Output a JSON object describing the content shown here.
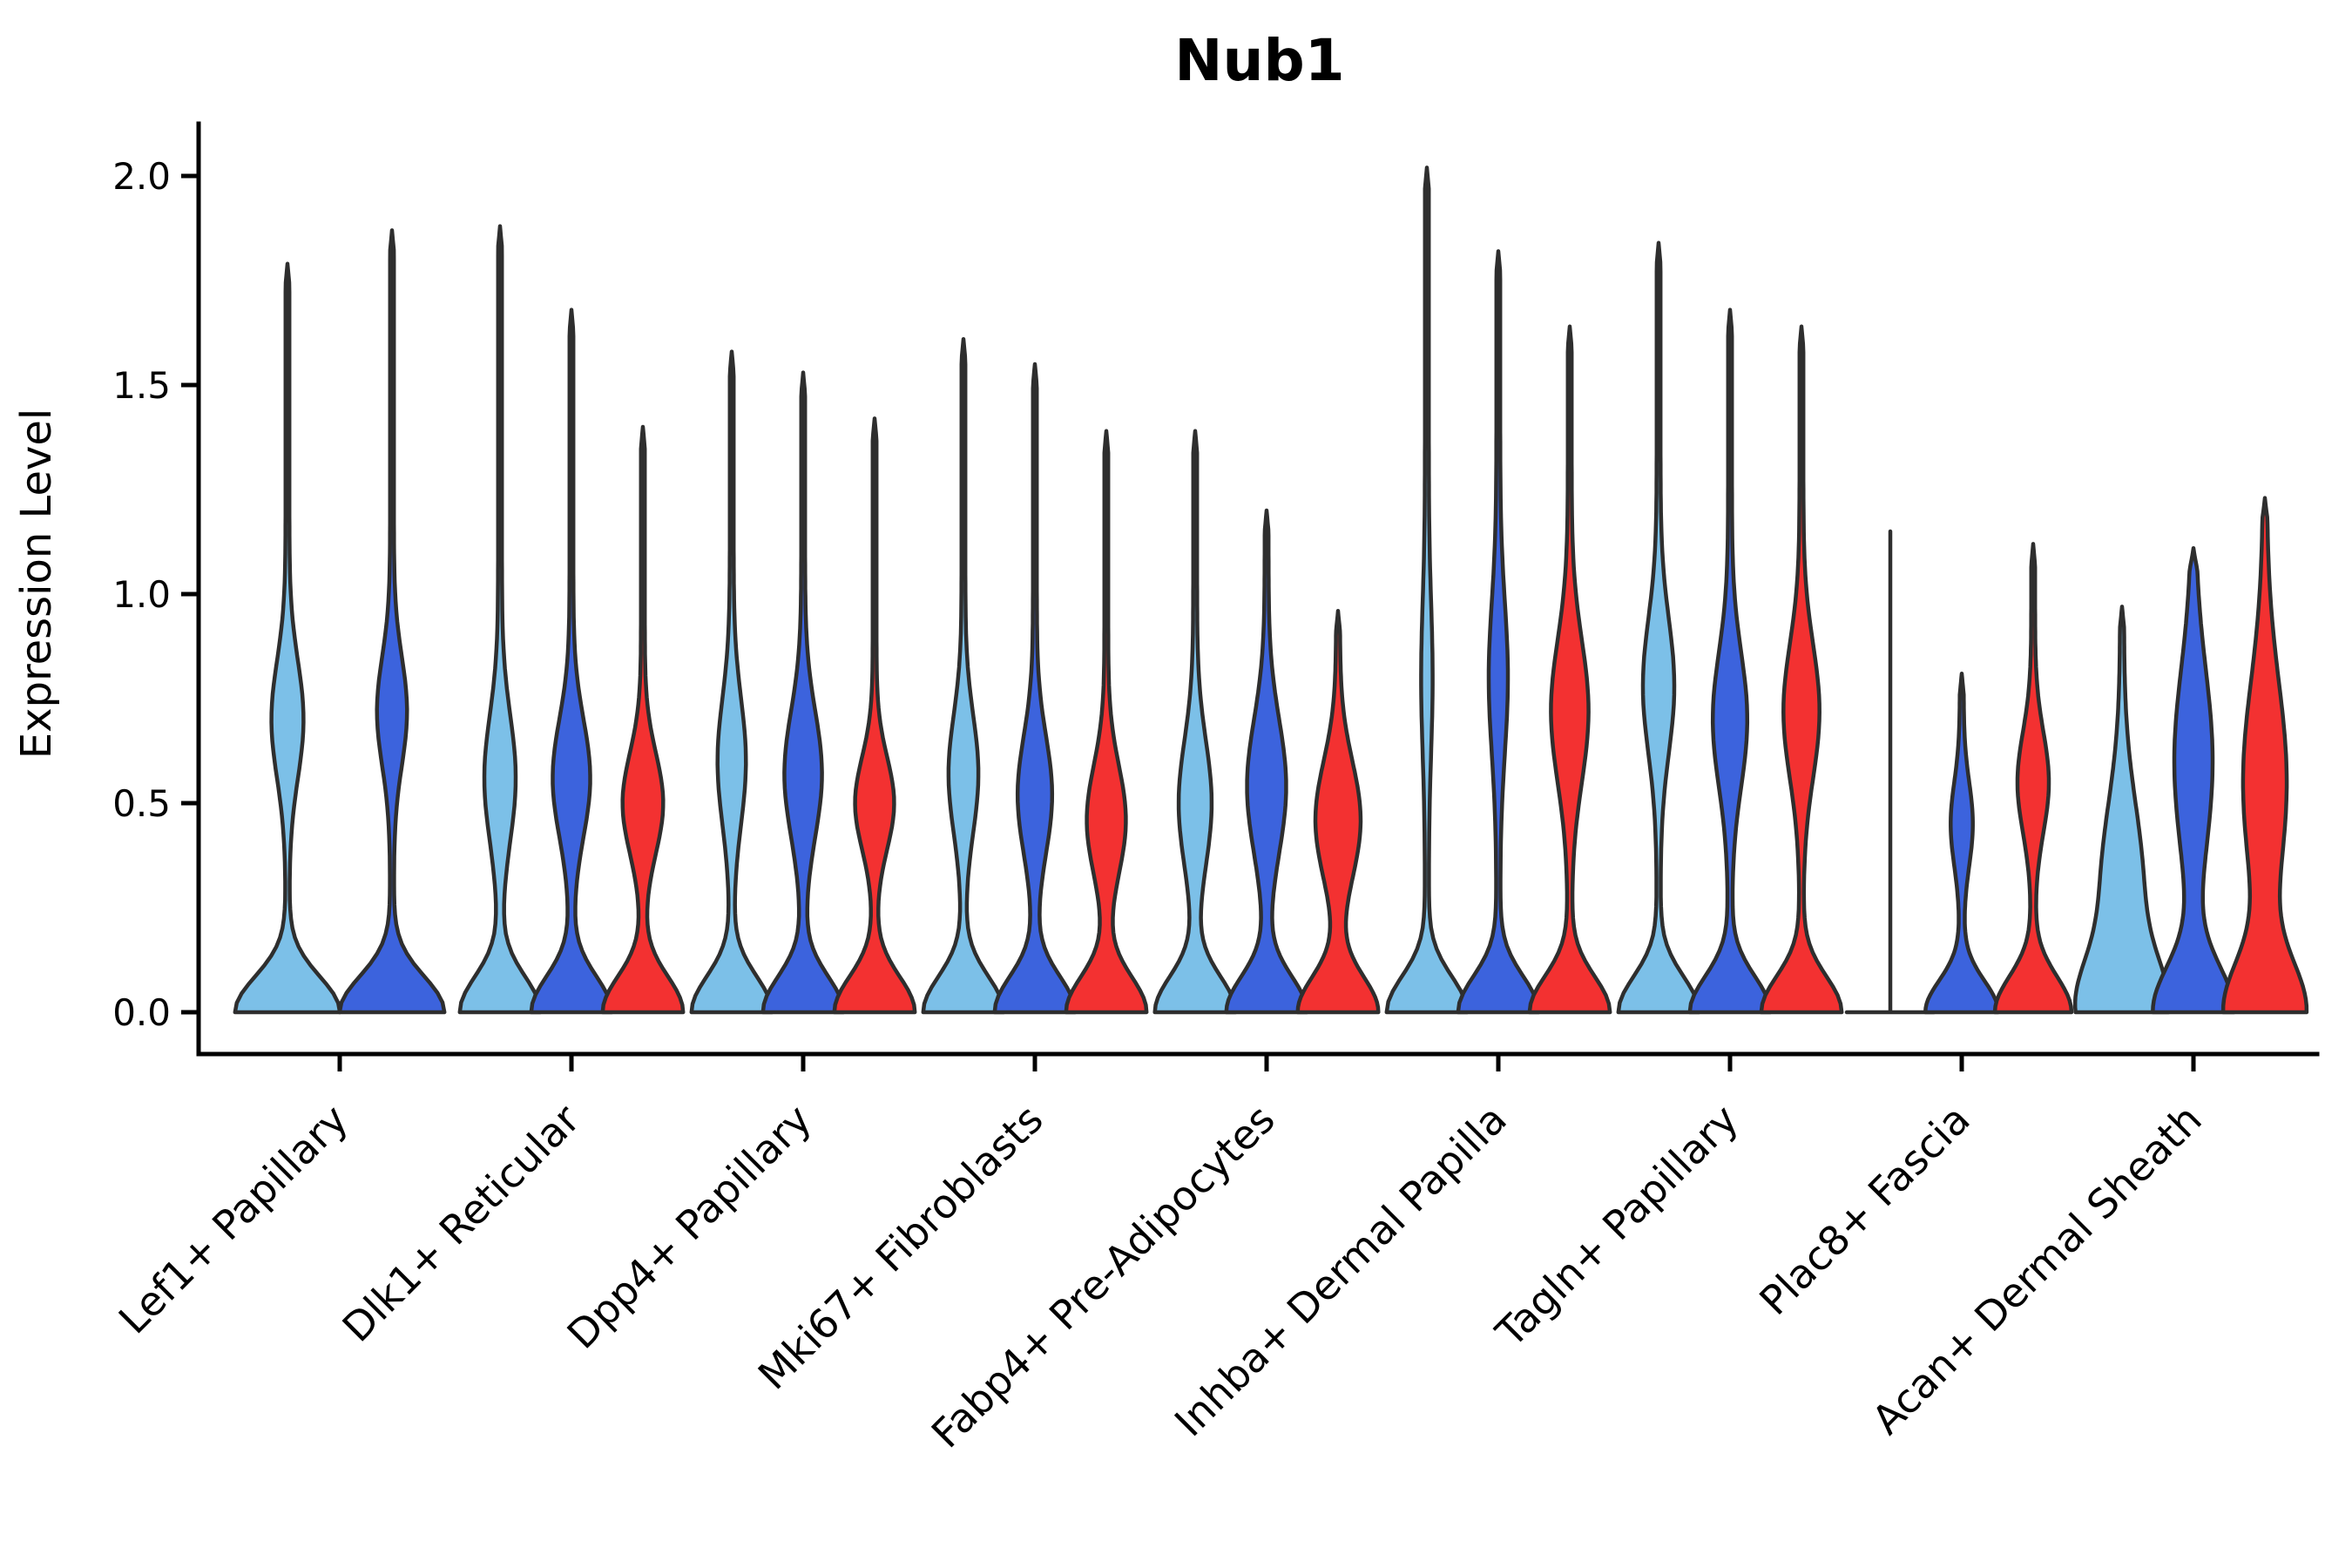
{
  "chart_data": {
    "type": "violin",
    "title": "Nub1",
    "xlabel": "",
    "ylabel": "Expression Level",
    "ylim": [
      0,
      2.1
    ],
    "grid": false,
    "legend": "none",
    "yticks": [
      {
        "value": 0.0,
        "label": "0.0"
      },
      {
        "value": 0.5,
        "label": "0.5"
      },
      {
        "value": 1.0,
        "label": "1.0"
      },
      {
        "value": 1.5,
        "label": "1.5"
      },
      {
        "value": 2.0,
        "label": "2.0"
      }
    ],
    "series_order": [
      "light_blue",
      "dark_blue",
      "red"
    ],
    "colors": {
      "light_blue": "#7CC0E8",
      "dark_blue": "#3C63DD",
      "red": "#F33131",
      "outline": "#2E2E2E",
      "axis": "#000000"
    },
    "categories": [
      "Lef1+ Papillary",
      "Dlk1+ Reticular",
      "Dpp4+ Papillary",
      "Mki67+ Fibroblasts",
      "Fabp4+ Pre-Adipocytes",
      "Inhba+ Dermal Papilla",
      "Tagln+ Papillary",
      "Plac8+ Fascia",
      "Acan+ Dermal Sheath"
    ],
    "groups": [
      {
        "label": "Lef1+ Papillary",
        "violins": [
          {
            "series": "light_blue",
            "shape": "violin",
            "max": 1.79,
            "bulge_center": 0.7,
            "bulge_sigma": 0.14,
            "bulge_width": 0.28,
            "base_width": 1.0,
            "base_sigma": 0.085
          },
          {
            "series": "dark_blue",
            "shape": "violin",
            "max": 1.87,
            "bulge_center": 0.72,
            "bulge_sigma": 0.13,
            "bulge_width": 0.26,
            "base_width": 1.0,
            "base_sigma": 0.085
          }
        ]
      },
      {
        "label": "Dlk1+ Reticular",
        "violins": [
          {
            "series": "light_blue",
            "shape": "violin",
            "max": 1.88,
            "bulge_center": 0.56,
            "bulge_sigma": 0.15,
            "bulge_width": 0.36,
            "base_width": 1.0,
            "base_sigma": 0.085
          },
          {
            "series": "dark_blue",
            "shape": "violin",
            "max": 1.68,
            "bulge_center": 0.56,
            "bulge_sigma": 0.14,
            "bulge_width": 0.44,
            "base_width": 1.0,
            "base_sigma": 0.085
          },
          {
            "series": "red",
            "shape": "violin",
            "max": 1.4,
            "bulge_center": 0.5,
            "bulge_sigma": 0.12,
            "bulge_width": 0.48,
            "base_width": 1.0,
            "base_sigma": 0.085
          }
        ]
      },
      {
        "label": "Dpp4+ Papillary",
        "violins": [
          {
            "series": "light_blue",
            "shape": "violin",
            "max": 1.58,
            "bulge_center": 0.6,
            "bulge_sigma": 0.15,
            "bulge_width": 0.32,
            "base_width": 1.0,
            "base_sigma": 0.085
          },
          {
            "series": "dark_blue",
            "shape": "violin",
            "max": 1.53,
            "bulge_center": 0.57,
            "bulge_sigma": 0.15,
            "bulge_width": 0.44,
            "base_width": 1.0,
            "base_sigma": 0.085
          },
          {
            "series": "red",
            "shape": "violin",
            "max": 1.42,
            "bulge_center": 0.5,
            "bulge_sigma": 0.11,
            "bulge_width": 0.46,
            "base_width": 1.0,
            "base_sigma": 0.085
          }
        ]
      },
      {
        "label": "Mki67+ Fibroblasts",
        "violins": [
          {
            "series": "light_blue",
            "shape": "violin",
            "max": 1.61,
            "bulge_center": 0.57,
            "bulge_sigma": 0.14,
            "bulge_width": 0.34,
            "base_width": 1.0,
            "base_sigma": 0.085
          },
          {
            "series": "dark_blue",
            "shape": "violin",
            "max": 1.55,
            "bulge_center": 0.52,
            "bulge_sigma": 0.14,
            "bulge_width": 0.4,
            "base_width": 1.0,
            "base_sigma": 0.085
          },
          {
            "series": "red",
            "shape": "violin",
            "max": 1.39,
            "bulge_center": 0.46,
            "bulge_sigma": 0.13,
            "bulge_width": 0.46,
            "base_width": 1.0,
            "base_sigma": 0.085
          }
        ]
      },
      {
        "label": "Fabp4+ Pre-Adipocytes",
        "violins": [
          {
            "series": "light_blue",
            "shape": "violin",
            "max": 1.39,
            "bulge_center": 0.5,
            "bulge_sigma": 0.15,
            "bulge_width": 0.38,
            "base_width": 1.0,
            "base_sigma": 0.085
          },
          {
            "series": "dark_blue",
            "shape": "violin",
            "max": 1.2,
            "bulge_center": 0.54,
            "bulge_sigma": 0.16,
            "bulge_width": 0.46,
            "base_width": 1.0,
            "base_sigma": 0.085
          },
          {
            "series": "red",
            "shape": "violin",
            "max": 0.96,
            "bulge_center": 0.46,
            "bulge_sigma": 0.14,
            "bulge_width": 0.54,
            "base_width": 1.0,
            "base_sigma": 0.085
          }
        ]
      },
      {
        "label": "Inhba+ Dermal Papilla",
        "violins": [
          {
            "series": "light_blue",
            "shape": "violin",
            "max": 2.02,
            "bulge_center": 0.8,
            "bulge_sigma": 0.18,
            "bulge_width": 0.1,
            "base_width": 1.0,
            "base_sigma": 0.085
          },
          {
            "series": "dark_blue",
            "shape": "violin",
            "max": 1.82,
            "bulge_center": 0.8,
            "bulge_sigma": 0.18,
            "bulge_width": 0.2,
            "base_width": 1.0,
            "base_sigma": 0.085
          },
          {
            "series": "red",
            "shape": "violin",
            "max": 1.64,
            "bulge_center": 0.72,
            "bulge_sigma": 0.17,
            "bulge_width": 0.44,
            "base_width": 1.0,
            "base_sigma": 0.085
          }
        ]
      },
      {
        "label": "Tagln+ Papillary",
        "violins": [
          {
            "series": "light_blue",
            "shape": "violin",
            "max": 1.84,
            "bulge_center": 0.78,
            "bulge_sigma": 0.16,
            "bulge_width": 0.36,
            "base_width": 1.0,
            "base_sigma": 0.085
          },
          {
            "series": "dark_blue",
            "shape": "violin",
            "max": 1.68,
            "bulge_center": 0.7,
            "bulge_sigma": 0.16,
            "bulge_width": 0.4,
            "base_width": 1.0,
            "base_sigma": 0.085
          },
          {
            "series": "red",
            "shape": "violin",
            "max": 1.64,
            "bulge_center": 0.72,
            "bulge_sigma": 0.16,
            "bulge_width": 0.42,
            "base_width": 1.0,
            "base_sigma": 0.085
          }
        ]
      },
      {
        "label": "Plac8+ Fascia",
        "violins": [
          {
            "series": "light_blue",
            "shape": "line",
            "max": 1.15,
            "bulge_center": 0,
            "bulge_sigma": 1,
            "bulge_width": 0,
            "base_width": 0,
            "base_sigma": 0.085
          },
          {
            "series": "dark_blue",
            "shape": "violin",
            "max": 0.81,
            "bulge_center": 0.45,
            "bulge_sigma": 0.1,
            "bulge_width": 0.24,
            "base_width": 0.9,
            "base_sigma": 0.075
          },
          {
            "series": "red",
            "shape": "violin",
            "max": 1.12,
            "bulge_center": 0.55,
            "bulge_sigma": 0.12,
            "bulge_width": 0.36,
            "base_width": 0.95,
            "base_sigma": 0.085
          }
        ]
      },
      {
        "label": "Acan+ Dermal Sheath",
        "violins": [
          {
            "series": "light_blue",
            "shape": "violin",
            "max": 0.97,
            "bulge_center": 0.3,
            "bulge_sigma": 0.2,
            "bulge_width": 0.5,
            "base_width": 1.0,
            "base_sigma": 0.12
          },
          {
            "series": "dark_blue",
            "shape": "violin",
            "max": 1.11,
            "bulge_center": 0.6,
            "bulge_sigma": 0.22,
            "bulge_width": 0.45,
            "base_width": 1.0,
            "base_sigma": 0.11
          },
          {
            "series": "red",
            "shape": "violin",
            "max": 1.23,
            "bulge_center": 0.55,
            "bulge_sigma": 0.24,
            "bulge_width": 0.52,
            "base_width": 1.0,
            "base_sigma": 0.12
          }
        ]
      }
    ]
  }
}
